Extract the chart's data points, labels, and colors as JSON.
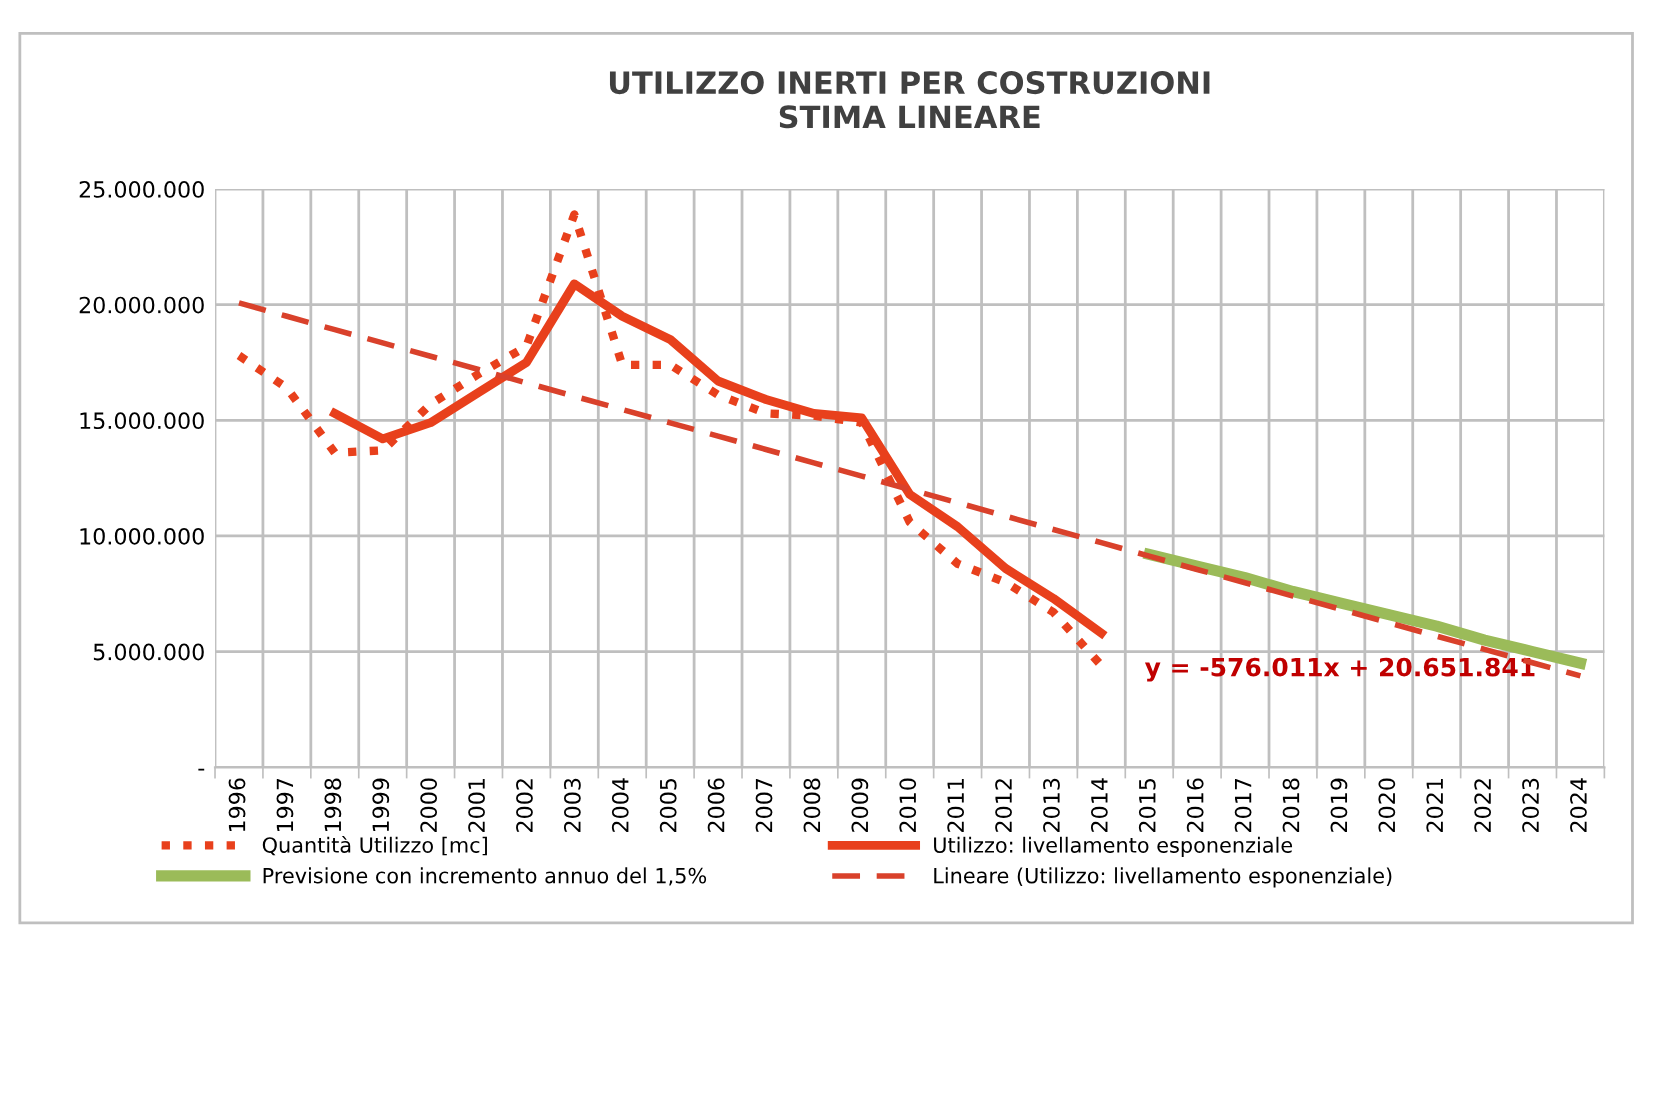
{
  "chart_data": {
    "type": "line",
    "title": "UTILIZZO INERTI PER COSTRUZIONI\nSTIMA LINEARE",
    "categories": [
      "1996",
      "1997",
      "1998",
      "1999",
      "2000",
      "2001",
      "2002",
      "2003",
      "2004",
      "2005",
      "2006",
      "2007",
      "2008",
      "2009",
      "2010",
      "2011",
      "2012",
      "2013",
      "2014",
      "2015",
      "2016",
      "2017",
      "2018",
      "2019",
      "2020",
      "2021",
      "2022",
      "2023",
      "2024"
    ],
    "series": [
      {
        "name": "Quantità Utilizzo [mc]",
        "color": "#e8401c",
        "line_style": "dotted",
        "values": [
          17800000,
          16400000,
          13600000,
          13700000,
          15700000,
          17000000,
          18200000,
          23900000,
          17400000,
          17400000,
          16100000,
          15300000,
          15200000,
          14900000,
          10600000,
          8800000,
          8000000,
          6700000,
          4400000,
          null,
          null,
          null,
          null,
          null,
          null,
          null,
          null,
          null,
          null
        ]
      },
      {
        "name": "Utilizzo: livellamento esponenziale",
        "color": "#e8401c",
        "line_style": "solid",
        "values": [
          null,
          null,
          15300000,
          14200000,
          14900000,
          16200000,
          17500000,
          20900000,
          19500000,
          18500000,
          16700000,
          15900000,
          15300000,
          15100000,
          11800000,
          10400000,
          8600000,
          7300000,
          5800000,
          null,
          null,
          null,
          null,
          null,
          null,
          null,
          null,
          null,
          null
        ]
      },
      {
        "name": "Previsione con incremento annuo del 1,5%",
        "color": "#9bbb59",
        "line_style": "solid",
        "values": [
          null,
          null,
          null,
          null,
          null,
          null,
          null,
          null,
          null,
          null,
          null,
          null,
          null,
          null,
          null,
          null,
          null,
          null,
          null,
          9200000,
          8700000,
          8200000,
          7600000,
          7100000,
          6600000,
          6100000,
          5500000,
          5000000,
          4500000
        ]
      },
      {
        "name": "Lineare (Utilizzo: livellamento esponenziale)",
        "color": "#d9412b",
        "line_style": "dashed",
        "values": [
          20080000,
          19500000,
          18920000,
          18350000,
          17770000,
          17200000,
          16620000,
          16040000,
          15470000,
          14890000,
          14320000,
          13740000,
          13160000,
          12590000,
          12010000,
          11440000,
          10860000,
          10280000,
          9710000,
          9130000,
          8550000,
          7980000,
          7400000,
          6830000,
          6250000,
          5670000,
          5100000,
          4520000,
          3950000
        ]
      }
    ],
    "ylim": [
      0,
      25000000
    ],
    "yticks": [
      {
        "value": 0,
        "label": "-"
      },
      {
        "value": 5000000,
        "label": "5.000.000"
      },
      {
        "value": 10000000,
        "label": "10.000.000"
      },
      {
        "value": 15000000,
        "label": "15.000.000"
      },
      {
        "value": 20000000,
        "label": "20.000.000"
      },
      {
        "value": 25000000,
        "label": "25.000.000"
      }
    ],
    "grid": true,
    "legend": "bottom",
    "marker": "none",
    "annotations": [
      "y = -576.011x + 20.651.841"
    ]
  }
}
